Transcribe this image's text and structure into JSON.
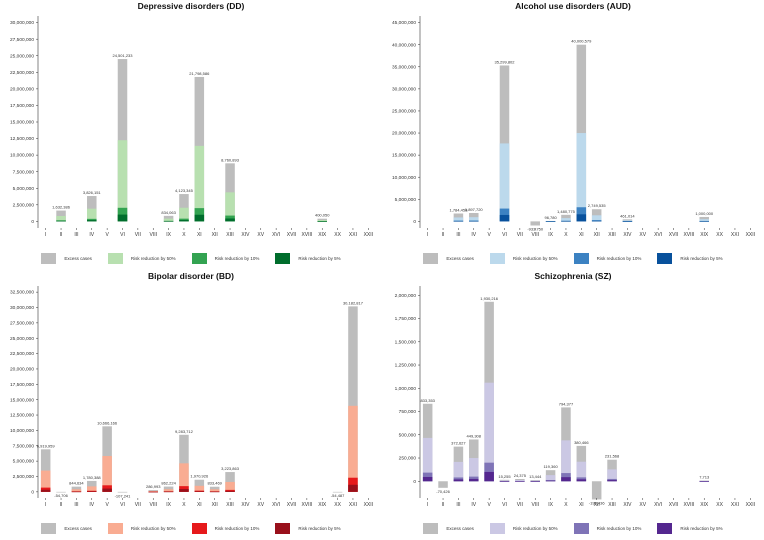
{
  "chart_data": [
    {
      "type": "bar",
      "title": "Depressive disorders (DD)",
      "categories": [
        "I",
        "II",
        "III",
        "IV",
        "V",
        "VI",
        "VII",
        "VIII",
        "IX",
        "X",
        "XI",
        "XII",
        "XIII",
        "XIV",
        "XV",
        "XVI",
        "XVII",
        "XVIII",
        "XIX",
        "XX",
        "XXI",
        "XXII"
      ],
      "ylim": [
        -1000000,
        31000000
      ],
      "yticks": [
        0,
        2500000,
        5000000,
        7500000,
        10000000,
        12500000,
        15000000,
        17500000,
        20000000,
        22500000,
        25000000,
        27500000,
        30000000
      ],
      "ytick_labels": [
        "0",
        "2,500,000",
        "5,000,000",
        "7,500,000",
        "10,000,000",
        "12,500,000",
        "15,000,000",
        "17,500,000",
        "20,000,000",
        "22,500,000",
        "25,000,000",
        "27,500,000",
        "30,000,000"
      ],
      "series": [
        {
          "name": "Excess cases",
          "color": "#bdbdbd",
          "values": [
            0,
            1632386,
            0,
            3826151,
            0,
            24501233,
            0,
            0,
            834063,
            4123345,
            21798586,
            0,
            8760893,
            0,
            0,
            0,
            0,
            0,
            400050,
            0,
            0,
            0
          ]
        },
        {
          "name": "Risk reduction by 50%",
          "color": "#b8e0b0",
          "values": [
            0,
            816193,
            0,
            1913076,
            0,
            12250617,
            0,
            0,
            417032,
            2061673,
            11399293,
            0,
            4380447,
            0,
            0,
            0,
            0,
            0,
            200025,
            0,
            0,
            0
          ]
        },
        {
          "name": "Risk reduction by 10%",
          "color": "#33a351",
          "values": [
            0,
            163239,
            0,
            382615,
            0,
            2050123,
            0,
            0,
            83406,
            412335,
            2000000,
            0,
            876089,
            0,
            0,
            0,
            0,
            0,
            40005,
            0,
            0,
            0
          ]
        },
        {
          "name": "Risk reduction by 5%",
          "color": "#006d2c",
          "values": [
            0,
            81619,
            0,
            191308,
            0,
            1025062,
            0,
            0,
            41703,
            206167,
            1000000,
            0,
            438045,
            0,
            0,
            0,
            0,
            0,
            20003,
            0,
            0,
            0
          ]
        }
      ],
      "data_labels": [
        "",
        "1,632,386",
        "",
        "3,826,151",
        "",
        "24,501,233",
        "",
        "",
        "834,063",
        "4,123,345",
        "21,798,586",
        "",
        "8,760,893",
        "",
        "",
        "",
        "",
        "",
        "400,050",
        "",
        "",
        ""
      ],
      "legend": [
        "Excess cases",
        "Risk reduction by 50%",
        "Risk reduction by 10%",
        "Risk reduction by 5%"
      ]
    },
    {
      "type": "bar",
      "title": "Alcohol use disorders (AUD)",
      "categories": [
        "I",
        "II",
        "III",
        "IV",
        "V",
        "VI",
        "VII",
        "VIII",
        "IX",
        "X",
        "XI",
        "XII",
        "XIII",
        "XIV",
        "XV",
        "XVI",
        "XVII",
        "XVIII",
        "XIX",
        "XX",
        "XXI",
        "XXII"
      ],
      "ylim": [
        -1500000,
        46500000
      ],
      "yticks": [
        0,
        5000000,
        10000000,
        15000000,
        20000000,
        25000000,
        30000000,
        35000000,
        40000000,
        45000000
      ],
      "ytick_labels": [
        "0",
        "5,000,000",
        "10,000,000",
        "15,000,000",
        "20,000,000",
        "25,000,000",
        "30,000,000",
        "35,000,000",
        "40,000,000",
        "45,000,000"
      ],
      "series": [
        {
          "name": "Excess cases",
          "color": "#bdbdbd",
          "values": [
            0,
            0,
            1784458,
            1897720,
            0,
            35299802,
            0,
            -933750,
            96780,
            1480775,
            40000579,
            2749535,
            0,
            461014,
            0,
            0,
            0,
            0,
            1000000,
            0,
            0,
            0
          ]
        },
        {
          "name": "Risk reduction by 50%",
          "color": "#bcd9ec",
          "values": [
            0,
            0,
            892229,
            948860,
            0,
            17649901,
            0,
            0,
            48390,
            740388,
            20000290,
            1374768,
            0,
            230507,
            0,
            0,
            0,
            0,
            500000,
            0,
            0,
            0
          ]
        },
        {
          "name": "Risk reduction by 10%",
          "color": "#3c82c2",
          "values": [
            0,
            0,
            178446,
            189772,
            0,
            2900000,
            0,
            0,
            9678,
            148078,
            3200000,
            274954,
            0,
            46101,
            0,
            0,
            0,
            0,
            100000,
            0,
            0,
            0
          ]
        },
        {
          "name": "Risk reduction by 5%",
          "color": "#08519c",
          "values": [
            0,
            0,
            89223,
            94886,
            0,
            1450000,
            0,
            0,
            4839,
            74039,
            1600000,
            137477,
            0,
            23051,
            0,
            0,
            0,
            0,
            50000,
            0,
            0,
            0
          ]
        }
      ],
      "data_labels": [
        "",
        "",
        "1,784,458",
        "1,897,720",
        "",
        "35,299,802",
        "",
        "-933,750",
        "96,780",
        "1,480,775",
        "40,000,579",
        "2,749,535",
        "",
        "461,014",
        "",
        "",
        "",
        "",
        "1,000,000",
        "",
        "",
        ""
      ],
      "legend": [
        "Excess cases",
        "Risk reduction by 50%",
        "Risk reduction by 10%",
        "Risk reduction by 5%"
      ]
    },
    {
      "type": "bar",
      "title": "Bipolar disorder (BD)",
      "categories": [
        "I",
        "II",
        "III",
        "IV",
        "V",
        "VI",
        "VII",
        "VIII",
        "IX",
        "X",
        "XI",
        "XII",
        "XIII",
        "XIV",
        "XV",
        "XVI",
        "XVII",
        "XVIII",
        "XIX",
        "XX",
        "XXI",
        "XXII"
      ],
      "ylim": [
        -1000000,
        33500000
      ],
      "yticks": [
        0,
        2500000,
        5000000,
        7500000,
        10000000,
        12500000,
        15000000,
        17500000,
        20000000,
        22500000,
        25000000,
        27500000,
        30000000,
        32500000
      ],
      "ytick_labels": [
        "0",
        "2,500,000",
        "5,000,000",
        "7,500,000",
        "10,000,000",
        "12,500,000",
        "15,000,000",
        "17,500,000",
        "20,000,000",
        "22,500,000",
        "25,000,000",
        "27,500,000",
        "30,000,000",
        "32,500,000"
      ],
      "series": [
        {
          "name": "Excess cases",
          "color": "#bdbdbd",
          "values": [
            6919959,
            -54706,
            844634,
            1780388,
            10666166,
            -107241,
            0,
            286993,
            862224,
            9283712,
            1970926,
            833469,
            3223863,
            0,
            0,
            0,
            0,
            0,
            0,
            -54487,
            30182817,
            0
          ]
        },
        {
          "name": "Risk reduction by 50%",
          "color": "#f9ac92",
          "values": [
            3459980,
            0,
            422317,
            890194,
            5833083,
            0,
            0,
            143497,
            431112,
            4641856,
            985463,
            416735,
            1611932,
            0,
            0,
            0,
            0,
            0,
            0,
            0,
            14000000,
            0
          ]
        },
        {
          "name": "Risk reduction by 10%",
          "color": "#e6191b",
          "values": [
            691996,
            0,
            84463,
            178039,
            1066617,
            0,
            0,
            28699,
            86222,
            928371,
            197093,
            83347,
            322386,
            0,
            0,
            0,
            0,
            0,
            0,
            0,
            2300000,
            0
          ]
        },
        {
          "name": "Risk reduction by 5%",
          "color": "#99101b",
          "values": [
            345998,
            0,
            42232,
            89019,
            533308,
            0,
            0,
            14350,
            43111,
            464186,
            98546,
            41673,
            161193,
            0,
            0,
            0,
            0,
            0,
            0,
            0,
            1150000,
            0
          ]
        }
      ],
      "data_labels": [
        "6,919,959",
        "-54,706",
        "844,634",
        "1,780,388",
        "10,666,166",
        "-107,241",
        "",
        "286,993",
        "862,224",
        "9,283,712",
        "1,970,926",
        "833,469",
        "3,223,863",
        "",
        "",
        "",
        "",
        "",
        "",
        "-54,487",
        "30,182,817",
        ""
      ],
      "legend": [
        "Excess cases",
        "Risk reduction by 50%",
        "Risk reduction by 10%",
        "Risk reduction by 5%"
      ]
    },
    {
      "type": "bar",
      "title": "Schizophrenia (SZ)",
      "categories": [
        "I",
        "II",
        "III",
        "IV",
        "V",
        "VI",
        "VII",
        "VIII",
        "IX",
        "X",
        "XI",
        "XII",
        "XIII",
        "XIV",
        "XV",
        "XVI",
        "XVII",
        "XVIII",
        "XIX",
        "XX",
        "XXI",
        "XXII"
      ],
      "ylim": [
        -180000,
        2100000
      ],
      "yticks": [
        0,
        250000,
        500000,
        750000,
        1000000,
        1250000,
        1500000,
        1750000,
        2000000
      ],
      "ytick_labels": [
        "0",
        "250,000",
        "500,000",
        "750,000",
        "1,000,000",
        "1,250,000",
        "1,500,000",
        "1,750,000",
        "2,000,000"
      ],
      "series": [
        {
          "name": "Excess cases",
          "color": "#bdbdbd",
          "values": [
            833353,
            -70426,
            372627,
            449308,
            1930216,
            15255,
            24375,
            13444,
            119360,
            794377,
            380466,
            -195436,
            231568,
            0,
            0,
            0,
            0,
            0,
            7713,
            0,
            0,
            0
          ]
        },
        {
          "name": "Risk reduction by 50%",
          "color": "#cbc8e4",
          "values": [
            466000,
            0,
            208000,
            250000,
            1060000,
            8000,
            13000,
            7000,
            66000,
            440000,
            210000,
            0,
            128000,
            0,
            0,
            0,
            0,
            0,
            4000,
            0,
            0,
            0
          ]
        },
        {
          "name": "Risk reduction by 10%",
          "color": "#7f74b7",
          "values": [
            93000,
            0,
            41000,
            50000,
            200000,
            1600,
            2600,
            1400,
            13000,
            88000,
            42000,
            0,
            25000,
            0,
            0,
            0,
            0,
            0,
            800,
            0,
            0,
            0
          ]
        },
        {
          "name": "Risk reduction by 5%",
          "color": "#54278f",
          "values": [
            46000,
            0,
            20000,
            25000,
            100000,
            800,
            1300,
            700,
            6500,
            44000,
            21000,
            0,
            12500,
            0,
            0,
            0,
            0,
            0,
            400,
            0,
            0,
            0
          ]
        }
      ],
      "data_labels": [
        "833,353",
        "-70,426",
        "372,627",
        "449,308",
        "1,930,216",
        "15,255",
        "24,375",
        "13,444",
        "119,360",
        "794,377",
        "380,466",
        "-195,436",
        "231,568",
        "",
        "",
        "",
        "",
        "",
        "7,713",
        "",
        "",
        ""
      ],
      "legend": [
        "Excess cases",
        "Risk reduction by 50%",
        "Risk reduction by 10%",
        "Risk reduction by 5%"
      ]
    }
  ]
}
